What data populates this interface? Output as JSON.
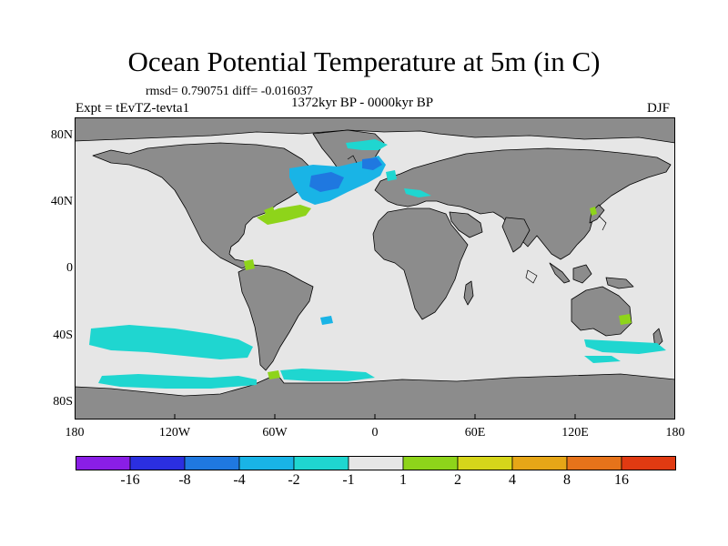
{
  "title": "Ocean Potential Temperature at 5m (in C)",
  "stats": "rmsd= 0.790751  diff= -0.016037",
  "experiment": "Expt = tEvTZ-tevta1",
  "period": "1372kyr BP - 0000kyr BP",
  "season": "DJF",
  "lat_labels": [
    "80N",
    "40N",
    "0",
    "40S",
    "80S"
  ],
  "lon_labels": [
    "180",
    "120W",
    "60W",
    "0",
    "60E",
    "120E",
    "180"
  ],
  "colorbar": {
    "colors": [
      "#8a1ee6",
      "#2b2fe0",
      "#1f78e0",
      "#19b4e6",
      "#1fd6d0",
      "#e6e6e6",
      "#8ed41a",
      "#d6d61a",
      "#e6a617",
      "#e6731a",
      "#e03a12"
    ],
    "labels": [
      "-16",
      "-8",
      "-4",
      "-2",
      "-1",
      "1",
      "2",
      "4",
      "8",
      "16"
    ]
  },
  "colors": {
    "ocean_background": "#e6e6e6",
    "land": "#8c8c8c",
    "coast": "#000000"
  }
}
